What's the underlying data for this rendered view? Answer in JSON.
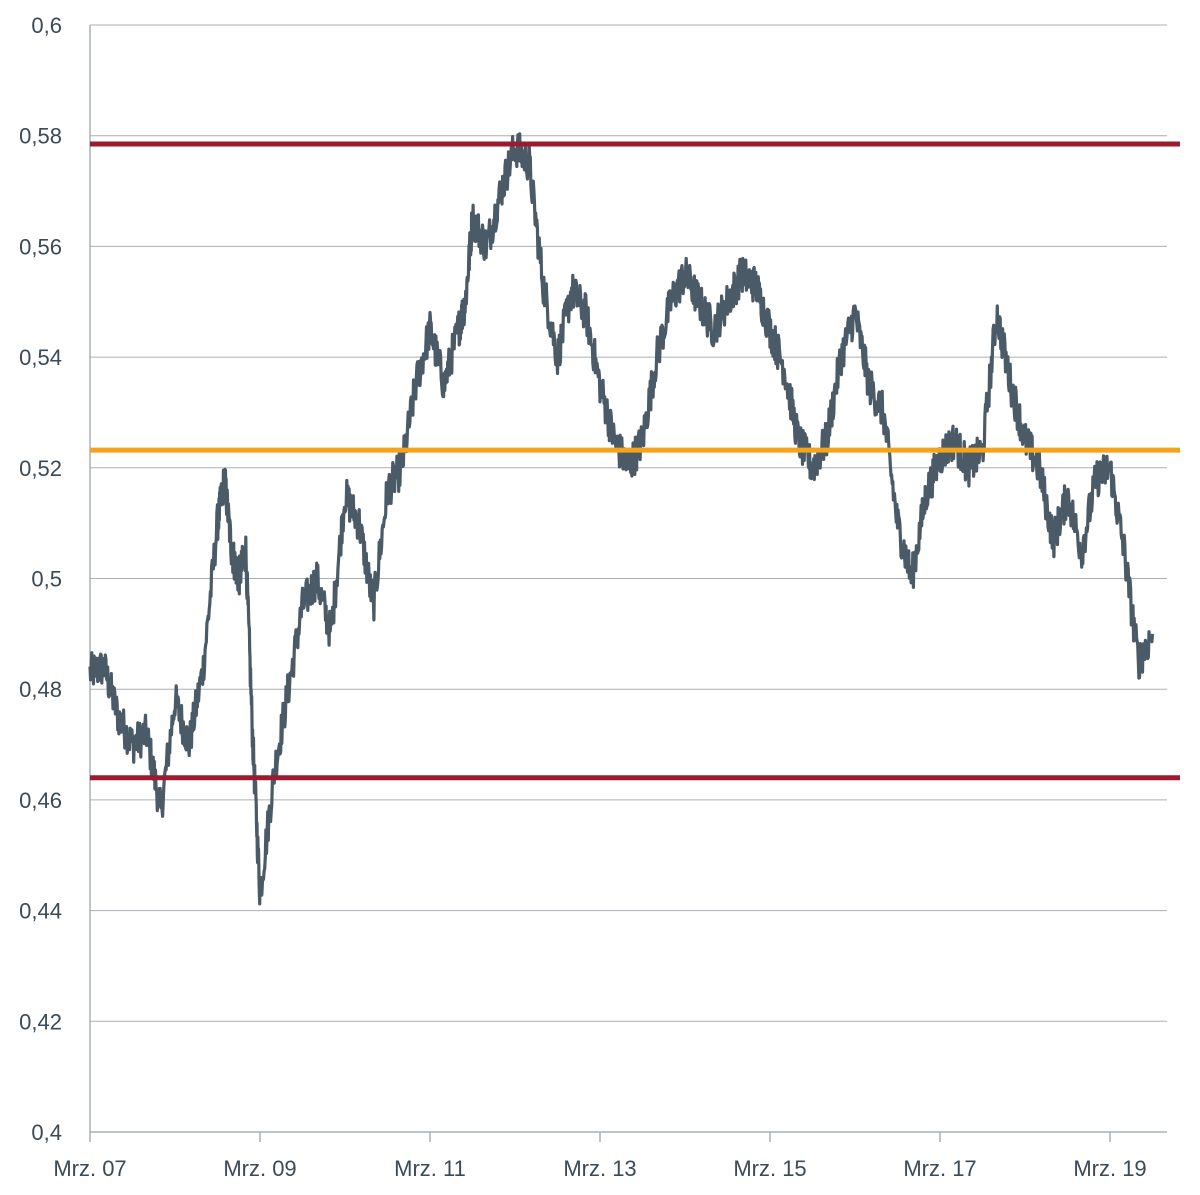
{
  "chart_data": {
    "type": "line",
    "title": "",
    "xlabel": "",
    "ylabel": "",
    "ylim": [
      0.4,
      0.6
    ],
    "y_ticks": [
      "0,4",
      "0,42",
      "0,44",
      "0,46",
      "0,48",
      "0,5",
      "0,52",
      "0,54",
      "0,56",
      "0,58",
      "0,6"
    ],
    "x_ticks": [
      "Mrz. 07",
      "Mrz. 09",
      "Mrz. 11",
      "Mrz. 13",
      "Mrz. 15",
      "Mrz. 17",
      "Mrz. 19"
    ],
    "grid": true,
    "x_range": [
      "2007-03",
      "2019-09"
    ],
    "series": [
      {
        "color": "#4a5a66",
        "x": [
          "2007-03",
          "2007-05",
          "2007-07",
          "2007-09",
          "2007-11",
          "2008-01",
          "2008-03",
          "2008-05",
          "2008-07",
          "2008-09",
          "2008-10",
          "2008-11",
          "2008-12",
          "2009-01",
          "2009-02",
          "2009-03",
          "2009-05",
          "2009-07",
          "2009-09",
          "2009-11",
          "2010-01",
          "2010-03",
          "2010-05",
          "2010-07",
          "2010-09",
          "2010-11",
          "2011-01",
          "2011-03",
          "2011-05",
          "2011-07",
          "2011-08",
          "2011-09",
          "2011-11",
          "2012-01",
          "2012-03",
          "2012-05",
          "2012-07",
          "2012-09",
          "2012-11",
          "2013-01",
          "2013-03",
          "2013-05",
          "2013-07",
          "2013-09",
          "2013-11",
          "2014-01",
          "2014-03",
          "2014-05",
          "2014-07",
          "2014-09",
          "2014-11",
          "2015-01",
          "2015-03",
          "2015-05",
          "2015-07",
          "2015-09",
          "2015-11",
          "2016-01",
          "2016-03",
          "2016-05",
          "2016-07",
          "2016-09",
          "2016-11",
          "2017-01",
          "2017-03",
          "2017-05",
          "2017-07",
          "2017-09",
          "2017-11",
          "2018-01",
          "2018-03",
          "2018-05",
          "2018-07",
          "2018-09",
          "2018-11",
          "2019-01",
          "2019-03",
          "2019-05",
          "2019-07",
          "2019-09"
        ],
        "y": [
          0.483,
          0.484,
          0.475,
          0.47,
          0.472,
          0.458,
          0.478,
          0.47,
          0.484,
          0.51,
          0.518,
          0.505,
          0.5,
          0.505,
          0.47,
          0.443,
          0.465,
          0.48,
          0.495,
          0.5,
          0.49,
          0.515,
          0.51,
          0.495,
          0.516,
          0.52,
          0.535,
          0.545,
          0.535,
          0.545,
          0.55,
          0.565,
          0.56,
          0.57,
          0.578,
          0.575,
          0.553,
          0.54,
          0.552,
          0.548,
          0.535,
          0.525,
          0.52,
          0.525,
          0.54,
          0.55,
          0.555,
          0.55,
          0.545,
          0.55,
          0.555,
          0.553,
          0.545,
          0.538,
          0.525,
          0.52,
          0.525,
          0.54,
          0.548,
          0.535,
          0.53,
          0.51,
          0.5,
          0.515,
          0.522,
          0.525,
          0.52,
          0.523,
          0.548,
          0.535,
          0.525,
          0.52,
          0.507,
          0.515,
          0.505,
          0.518,
          0.52,
          0.505,
          0.485,
          0.49
        ]
      }
    ],
    "reference_lines": [
      {
        "y": 0.5785,
        "color": "#9b1b30"
      },
      {
        "y": 0.5232,
        "color": "#f5a31a"
      },
      {
        "y": 0.464,
        "color": "#9b1b30"
      }
    ]
  }
}
